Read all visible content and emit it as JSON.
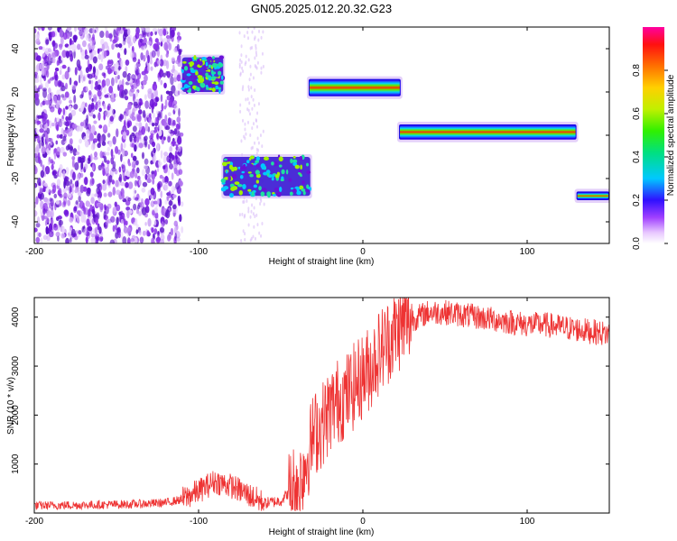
{
  "title": "GN05.2025.012.20.32.G23",
  "chart_data": [
    {
      "type": "heatmap",
      "xlabel": "Height of straight line (km)",
      "ylabel": "Frequency (Hz)",
      "xlim": [
        -200,
        150
      ],
      "ylim": [
        -50,
        50
      ],
      "xticks": [
        -200,
        -100,
        0,
        100
      ],
      "yticks": [
        -40,
        -20,
        0,
        20,
        40
      ],
      "colorbar": {
        "label": "Normalized spectral amplitude",
        "range": [
          0,
          1
        ],
        "ticks": [
          0.0,
          0.2,
          0.4,
          0.6,
          0.8
        ]
      },
      "regions": [
        {
          "x": [
            -200,
            -110
          ],
          "freq": [
            -50,
            50
          ],
          "amplitude": "low",
          "pattern": "noise"
        },
        {
          "x": [
            -110,
            -85
          ],
          "freq": [
            20,
            36
          ],
          "amplitude": 0.25
        },
        {
          "x": [
            -85,
            -32
          ],
          "freq": [
            -28,
            -10
          ],
          "amplitude": 0.3
        },
        {
          "x": [
            -33,
            23
          ],
          "freq": [
            18,
            26
          ],
          "amplitude": 0.9
        },
        {
          "x": [
            22,
            130
          ],
          "freq": [
            -2,
            5
          ],
          "amplitude": 0.7
        },
        {
          "x": [
            130,
            150
          ],
          "freq": [
            -30,
            -26
          ],
          "amplitude": 0.95
        }
      ]
    },
    {
      "type": "line",
      "xlabel": "Height of straight line (km)",
      "ylabel": "SNR (10 * v/v)",
      "xlim": [
        -200,
        150
      ],
      "ylim": [
        0,
        4400
      ],
      "xticks": [
        -200,
        -100,
        0,
        100
      ],
      "yticks": [
        1000,
        2000,
        3000,
        4000
      ],
      "color": "#ee3333",
      "series": [
        {
          "x": [
            -200,
            -180,
            -160,
            -140,
            -120,
            -110,
            -100,
            -90,
            -80,
            -70,
            -60,
            -50,
            -40,
            -35,
            -30,
            -25,
            -20,
            -15,
            -10,
            -5,
            0,
            5,
            10,
            15,
            20,
            25,
            30,
            40,
            50,
            60,
            70,
            80,
            90,
            100,
            110,
            120,
            130,
            140,
            150
          ],
          "y": [
            150,
            160,
            170,
            180,
            210,
            280,
            450,
            650,
            550,
            380,
            200,
            250,
            600,
            1000,
            1600,
            1800,
            2100,
            2300,
            2400,
            2600,
            2800,
            3000,
            3300,
            3500,
            3700,
            3850,
            3950,
            4100,
            4100,
            4050,
            4000,
            3950,
            3900,
            3850,
            3850,
            3800,
            3750,
            3700,
            3650
          ]
        }
      ]
    }
  ]
}
